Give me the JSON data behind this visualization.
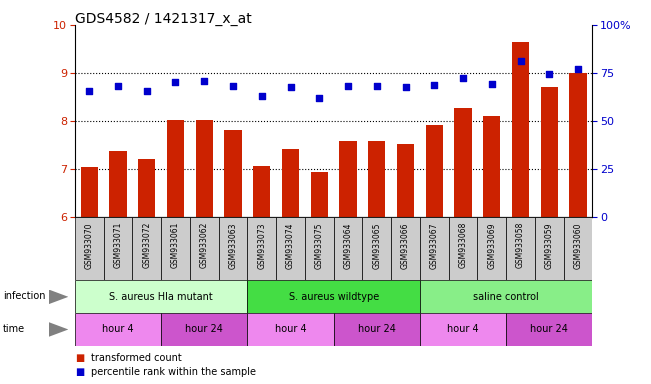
{
  "title": "GDS4582 / 1421317_x_at",
  "samples": [
    "GSM933070",
    "GSM933071",
    "GSM933072",
    "GSM933061",
    "GSM933062",
    "GSM933063",
    "GSM933073",
    "GSM933074",
    "GSM933075",
    "GSM933064",
    "GSM933065",
    "GSM933066",
    "GSM933067",
    "GSM933068",
    "GSM933069",
    "GSM933058",
    "GSM933059",
    "GSM933060"
  ],
  "bar_values": [
    7.05,
    7.38,
    7.2,
    8.01,
    8.02,
    7.82,
    7.07,
    7.42,
    6.93,
    7.58,
    7.58,
    7.52,
    7.92,
    8.27,
    8.1,
    9.65,
    8.7,
    9.0
  ],
  "dot_values_pct": [
    65.75,
    68.0,
    65.75,
    70.5,
    70.75,
    68.25,
    63.25,
    67.5,
    61.75,
    68.25,
    68.25,
    67.5,
    68.75,
    72.5,
    69.5,
    81.25,
    74.5,
    77.0
  ],
  "bar_color": "#cc2200",
  "dot_color": "#0000cc",
  "ylim_left": [
    6,
    10
  ],
  "yticks_left": [
    6,
    7,
    8,
    9,
    10
  ],
  "ylim_right": [
    0,
    100
  ],
  "yticks_right": [
    0,
    25,
    50,
    75,
    100
  ],
  "yticklabels_right": [
    "0",
    "25",
    "50",
    "75",
    "100%"
  ],
  "infection_groups": [
    {
      "label": "S. aureus Hla mutant",
      "start": 0,
      "end": 6,
      "color": "#ccffcc"
    },
    {
      "label": "S. aureus wildtype",
      "start": 6,
      "end": 12,
      "color": "#44dd44"
    },
    {
      "label": "saline control",
      "start": 12,
      "end": 18,
      "color": "#88ee88"
    }
  ],
  "time_groups": [
    {
      "label": "hour 4",
      "start": 0,
      "end": 3,
      "color": "#ee88ee"
    },
    {
      "label": "hour 24",
      "start": 3,
      "end": 6,
      "color": "#cc55cc"
    },
    {
      "label": "hour 4",
      "start": 6,
      "end": 9,
      "color": "#ee88ee"
    },
    {
      "label": "hour 24",
      "start": 9,
      "end": 12,
      "color": "#cc55cc"
    },
    {
      "label": "hour 4",
      "start": 12,
      "end": 15,
      "color": "#ee88ee"
    },
    {
      "label": "hour 24",
      "start": 15,
      "end": 18,
      "color": "#cc55cc"
    }
  ],
  "legend_items": [
    {
      "label": "transformed count",
      "color": "#cc2200"
    },
    {
      "label": "percentile rank within the sample",
      "color": "#0000cc"
    }
  ],
  "xlabel_color": "#cc2200",
  "ylabel_right_color": "#0000cc",
  "bg_color": "#ffffff",
  "tick_label_bg": "#cccccc",
  "gridline_color": "#000000",
  "gridline_style": "dotted",
  "title_fontsize": 10,
  "tick_fontsize": 8,
  "label_fontsize": 7,
  "sample_fontsize": 5.5
}
